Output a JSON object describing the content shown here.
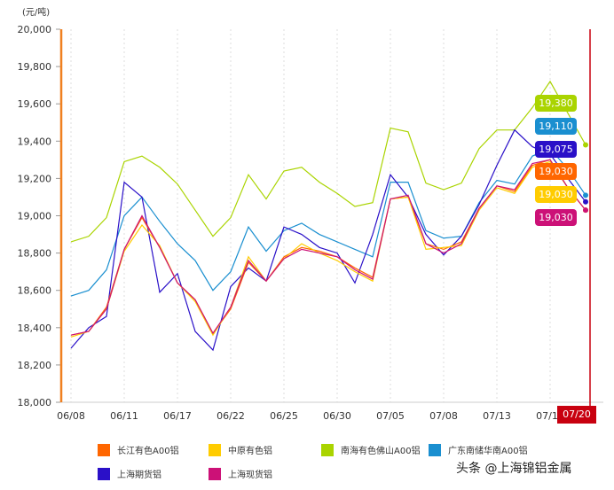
{
  "chart_data": {
    "type": "line",
    "unit_label": "(元/吨)",
    "ylim": [
      18000,
      20000
    ],
    "yticks": [
      "18,000",
      "18,200",
      "18,400",
      "18,600",
      "18,800",
      "19,000",
      "19,200",
      "19,400",
      "19,600",
      "19,800",
      "20,000"
    ],
    "ytick_values": [
      18000,
      18200,
      18400,
      18600,
      18800,
      19000,
      19200,
      19400,
      19600,
      19800,
      20000
    ],
    "x": [
      "06/08",
      "06/09",
      "06/10",
      "06/11",
      "06/15",
      "06/16",
      "06/17",
      "06/18",
      "06/21",
      "06/22",
      "06/23",
      "06/24",
      "06/25",
      "06/28",
      "06/29",
      "06/30",
      "07/01",
      "07/02",
      "07/05",
      "07/06",
      "07/07",
      "07/08",
      "07/09",
      "07/12",
      "07/13",
      "07/14",
      "07/15",
      "07/16",
      "07/19",
      "07/20"
    ],
    "xtick_labels": [
      "06/08",
      "06/11",
      "06/17",
      "06/22",
      "06/25",
      "06/30",
      "07/05",
      "07/08",
      "07/13",
      "07/16"
    ],
    "xtick_index": [
      0,
      3,
      6,
      9,
      12,
      15,
      18,
      21,
      24,
      27
    ],
    "cursor_label": "07/20",
    "grid": "vertical dotted",
    "legend_position": "bottom",
    "series": [
      {
        "name": "长江有色A00铝",
        "color": "#ff6600",
        "values": [
          18360,
          18380,
          18510,
          18820,
          18990,
          18830,
          18640,
          18550,
          18370,
          18500,
          18750,
          18650,
          18780,
          18830,
          18810,
          18780,
          18720,
          18670,
          19090,
          19100,
          18850,
          18820,
          18860,
          19040,
          19160,
          19130,
          19270,
          19300,
          19150,
          19030
        ],
        "last_label": "19,030"
      },
      {
        "name": "中原有色铝",
        "color": "#ffcc00",
        "values": [
          18350,
          18380,
          18500,
          18810,
          18950,
          18840,
          18640,
          18540,
          18360,
          18510,
          18780,
          18650,
          18770,
          18850,
          18800,
          18760,
          18700,
          18650,
          19090,
          19100,
          18820,
          18830,
          18840,
          19030,
          19150,
          19120,
          19260,
          19290,
          19150,
          19030
        ],
        "last_label": "19,030"
      },
      {
        "name": "南海有色佛山A00铝",
        "color": "#aad400",
        "values": [
          18860,
          18890,
          18990,
          19290,
          19320,
          19260,
          19170,
          19030,
          18890,
          18990,
          19220,
          19090,
          19240,
          19260,
          19180,
          19120,
          19050,
          19070,
          19470,
          19450,
          19175,
          19140,
          19175,
          19360,
          19460,
          19460,
          19580,
          19720,
          19550,
          19380
        ],
        "last_label": "19,380"
      },
      {
        "name": "广东南储华南A00铝",
        "color": "#1a8fd0",
        "values": [
          18570,
          18600,
          18710,
          19000,
          19100,
          18970,
          18850,
          18760,
          18600,
          18700,
          18940,
          18810,
          18920,
          18960,
          18900,
          18860,
          18820,
          18780,
          19180,
          19180,
          18920,
          18880,
          18890,
          19070,
          19190,
          19170,
          19320,
          19360,
          19250,
          19110
        ],
        "last_label": "19,110"
      },
      {
        "name": "上海期货铝",
        "color": "#2a10c8",
        "values": [
          18290,
          18400,
          18460,
          19180,
          19100,
          18590,
          18690,
          18380,
          18280,
          18620,
          18720,
          18650,
          18940,
          18900,
          18830,
          18800,
          18640,
          18900,
          19220,
          19100,
          18900,
          18790,
          18890,
          19060,
          19270,
          19460,
          19370,
          19330,
          19200,
          19075
        ],
        "last_label": "19,075"
      },
      {
        "name": "上海现货铝",
        "color": "#cc1177",
        "values": [
          18360,
          18380,
          18500,
          18820,
          19000,
          18830,
          18640,
          18550,
          18370,
          18510,
          18760,
          18650,
          18770,
          18820,
          18800,
          18780,
          18710,
          18660,
          19090,
          19110,
          18850,
          18800,
          18850,
          19040,
          19160,
          19140,
          19280,
          19300,
          19150,
          19030
        ],
        "last_label": "19,030"
      }
    ]
  },
  "watermark": "头条 @上海锦铝金属"
}
